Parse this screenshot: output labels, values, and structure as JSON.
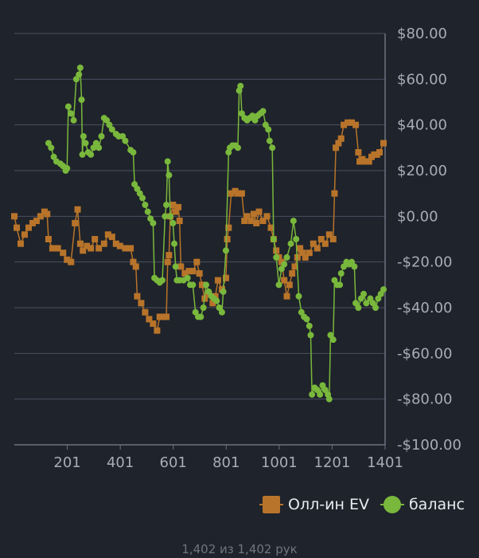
{
  "chart_data": {
    "type": "line",
    "title": "",
    "xlabel": "",
    "ylabel": "",
    "xlim": [
      1,
      1401
    ],
    "ylim": [
      -100,
      80
    ],
    "x_ticks": [
      201,
      401,
      601,
      801,
      1001,
      1201,
      1401
    ],
    "x_tick_labels": [
      "201",
      "401",
      "601",
      "801",
      "1001",
      "1201",
      "1401"
    ],
    "y_ticks": [
      80,
      60,
      40,
      20,
      0,
      -20,
      -40,
      -60,
      -80,
      -100
    ],
    "y_tick_labels": [
      "$80.00",
      "$60.00",
      "$40.00",
      "$20.00",
      "$0.00",
      "-$20.00",
      "-$40.00",
      "-$60.00",
      "-$80.00",
      "-$100.00"
    ],
    "grid": true,
    "legend_position": "bottom-right",
    "series": [
      {
        "name": "Олл-ин EV",
        "marker": "square",
        "color": "#b8742a",
        "points": [
          [
            1,
            0
          ],
          [
            10,
            -5
          ],
          [
            25,
            -12
          ],
          [
            40,
            -8
          ],
          [
            55,
            -5
          ],
          [
            70,
            -3
          ],
          [
            85,
            -2
          ],
          [
            100,
            0
          ],
          [
            115,
            2
          ],
          [
            125,
            1
          ],
          [
            130,
            -10
          ],
          [
            145,
            -14
          ],
          [
            165,
            -14
          ],
          [
            185,
            -16
          ],
          [
            200,
            -19
          ],
          [
            215,
            -20
          ],
          [
            230,
            -3
          ],
          [
            240,
            3
          ],
          [
            250,
            -12
          ],
          [
            260,
            -15
          ],
          [
            275,
            -13
          ],
          [
            290,
            -14
          ],
          [
            305,
            -10
          ],
          [
            320,
            -14
          ],
          [
            340,
            -12
          ],
          [
            355,
            -8
          ],
          [
            370,
            -9
          ],
          [
            385,
            -12
          ],
          [
            400,
            -13
          ],
          [
            420,
            -14
          ],
          [
            440,
            -14
          ],
          [
            450,
            -20
          ],
          [
            460,
            -22
          ],
          [
            465,
            -35
          ],
          [
            480,
            -38
          ],
          [
            495,
            -42
          ],
          [
            510,
            -45
          ],
          [
            525,
            -47
          ],
          [
            540,
            -50
          ],
          [
            550,
            -44
          ],
          [
            560,
            -44
          ],
          [
            575,
            -44
          ],
          [
            580,
            -20
          ],
          [
            585,
            -17
          ],
          [
            590,
            0
          ],
          [
            600,
            5
          ],
          [
            610,
            2
          ],
          [
            620,
            4
          ],
          [
            625,
            -2
          ],
          [
            630,
            -22
          ],
          [
            645,
            -25
          ],
          [
            660,
            -24
          ],
          [
            675,
            -24
          ],
          [
            690,
            -20
          ],
          [
            700,
            -25
          ],
          [
            710,
            -30
          ],
          [
            720,
            -36
          ],
          [
            735,
            -34
          ],
          [
            750,
            -38
          ],
          [
            760,
            -35
          ],
          [
            770,
            -28
          ],
          [
            785,
            -32
          ],
          [
            800,
            -27
          ],
          [
            805,
            -10
          ],
          [
            810,
            -5
          ],
          [
            820,
            10
          ],
          [
            835,
            11
          ],
          [
            845,
            10
          ],
          [
            860,
            10
          ],
          [
            870,
            -2
          ],
          [
            880,
            0
          ],
          [
            895,
            -2
          ],
          [
            905,
            1
          ],
          [
            915,
            -3
          ],
          [
            925,
            2
          ],
          [
            940,
            -2
          ],
          [
            955,
            0
          ],
          [
            970,
            -5
          ],
          [
            980,
            -10
          ],
          [
            990,
            -15
          ],
          [
            1000,
            -18
          ],
          [
            1010,
            -20
          ],
          [
            1020,
            -28
          ],
          [
            1030,
            -35
          ],
          [
            1040,
            -30
          ],
          [
            1050,
            -25
          ],
          [
            1060,
            -22
          ],
          [
            1070,
            -18
          ],
          [
            1080,
            -14
          ],
          [
            1090,
            -16
          ],
          [
            1100,
            -18
          ],
          [
            1115,
            -16
          ],
          [
            1130,
            -12
          ],
          [
            1145,
            -14
          ],
          [
            1160,
            -10
          ],
          [
            1175,
            -12
          ],
          [
            1190,
            -8
          ],
          [
            1205,
            -10
          ],
          [
            1210,
            10
          ],
          [
            1215,
            30
          ],
          [
            1225,
            32
          ],
          [
            1235,
            34
          ],
          [
            1245,
            40
          ],
          [
            1260,
            41
          ],
          [
            1275,
            41
          ],
          [
            1290,
            40
          ],
          [
            1300,
            28
          ],
          [
            1305,
            24
          ],
          [
            1315,
            25
          ],
          [
            1325,
            24
          ],
          [
            1340,
            24
          ],
          [
            1350,
            26
          ],
          [
            1360,
            27
          ],
          [
            1370,
            27
          ],
          [
            1380,
            28
          ],
          [
            1395,
            32
          ]
        ]
      },
      {
        "name": "баланс",
        "marker": "circle",
        "color": "#79b83c",
        "points": [
          [
            130,
            32
          ],
          [
            140,
            30
          ],
          [
            150,
            26
          ],
          [
            160,
            24
          ],
          [
            175,
            23
          ],
          [
            185,
            22
          ],
          [
            195,
            20
          ],
          [
            200,
            21
          ],
          [
            205,
            48
          ],
          [
            215,
            45
          ],
          [
            225,
            42
          ],
          [
            235,
            60
          ],
          [
            245,
            62
          ],
          [
            250,
            65
          ],
          [
            255,
            51
          ],
          [
            258,
            27
          ],
          [
            262,
            35
          ],
          [
            270,
            32
          ],
          [
            280,
            28
          ],
          [
            290,
            27
          ],
          [
            300,
            30
          ],
          [
            310,
            32
          ],
          [
            320,
            30
          ],
          [
            330,
            35
          ],
          [
            340,
            43
          ],
          [
            350,
            42
          ],
          [
            360,
            40
          ],
          [
            370,
            38
          ],
          [
            385,
            36
          ],
          [
            395,
            35
          ],
          [
            410,
            35
          ],
          [
            420,
            33
          ],
          [
            440,
            29
          ],
          [
            450,
            28
          ],
          [
            455,
            14
          ],
          [
            465,
            12
          ],
          [
            475,
            10
          ],
          [
            485,
            8
          ],
          [
            495,
            5
          ],
          [
            505,
            2
          ],
          [
            515,
            -1
          ],
          [
            525,
            -3
          ],
          [
            530,
            -27
          ],
          [
            540,
            -28
          ],
          [
            550,
            -29
          ],
          [
            560,
            -28
          ],
          [
            570,
            0
          ],
          [
            575,
            5
          ],
          [
            580,
            24
          ],
          [
            585,
            18
          ],
          [
            590,
            0
          ],
          [
            600,
            -3
          ],
          [
            605,
            -12
          ],
          [
            610,
            -22
          ],
          [
            615,
            -28
          ],
          [
            625,
            -28
          ],
          [
            640,
            -28
          ],
          [
            655,
            -27
          ],
          [
            665,
            -30
          ],
          [
            675,
            -30
          ],
          [
            685,
            -42
          ],
          [
            695,
            -44
          ],
          [
            705,
            -44
          ],
          [
            715,
            -40
          ],
          [
            725,
            -30
          ],
          [
            735,
            -33
          ],
          [
            745,
            -35
          ],
          [
            755,
            -36
          ],
          [
            765,
            -37
          ],
          [
            775,
            -40
          ],
          [
            785,
            -42
          ],
          [
            790,
            -33
          ],
          [
            800,
            -15
          ],
          [
            810,
            28
          ],
          [
            815,
            30
          ],
          [
            825,
            31
          ],
          [
            835,
            31
          ],
          [
            845,
            30
          ],
          [
            850,
            55
          ],
          [
            855,
            57
          ],
          [
            860,
            45
          ],
          [
            870,
            43
          ],
          [
            880,
            42
          ],
          [
            890,
            43
          ],
          [
            900,
            44
          ],
          [
            910,
            42
          ],
          [
            920,
            44
          ],
          [
            930,
            45
          ],
          [
            940,
            46
          ],
          [
            950,
            40
          ],
          [
            960,
            38
          ],
          [
            965,
            33
          ],
          [
            975,
            30
          ],
          [
            980,
            -10
          ],
          [
            990,
            -18
          ],
          [
            1000,
            -30
          ],
          [
            1010,
            -23
          ],
          [
            1020,
            -21
          ],
          [
            1030,
            -18
          ],
          [
            1045,
            -12
          ],
          [
            1055,
            -2
          ],
          [
            1065,
            -10
          ],
          [
            1075,
            -35
          ],
          [
            1085,
            -42
          ],
          [
            1095,
            -44
          ],
          [
            1105,
            -45
          ],
          [
            1115,
            -48
          ],
          [
            1120,
            -52
          ],
          [
            1125,
            -78
          ],
          [
            1135,
            -75
          ],
          [
            1145,
            -76
          ],
          [
            1155,
            -78
          ],
          [
            1165,
            -74
          ],
          [
            1175,
            -76
          ],
          [
            1185,
            -78
          ],
          [
            1190,
            -80
          ],
          [
            1195,
            -52
          ],
          [
            1205,
            -54
          ],
          [
            1210,
            -28
          ],
          [
            1220,
            -30
          ],
          [
            1230,
            -30
          ],
          [
            1235,
            -25
          ],
          [
            1245,
            -22
          ],
          [
            1255,
            -20
          ],
          [
            1265,
            -21
          ],
          [
            1275,
            -20
          ],
          [
            1285,
            -22
          ],
          [
            1290,
            -38
          ],
          [
            1300,
            -40
          ],
          [
            1310,
            -36
          ],
          [
            1320,
            -34
          ],
          [
            1330,
            -38
          ],
          [
            1345,
            -36
          ],
          [
            1355,
            -38
          ],
          [
            1365,
            -40
          ],
          [
            1375,
            -36
          ],
          [
            1385,
            -34
          ],
          [
            1395,
            -32
          ]
        ]
      }
    ]
  },
  "legend": {
    "items": [
      {
        "label": "Олл-ин EV"
      },
      {
        "label": "баланс"
      }
    ]
  },
  "footer": {
    "count_text": "1,402 из 1,402 рук"
  }
}
